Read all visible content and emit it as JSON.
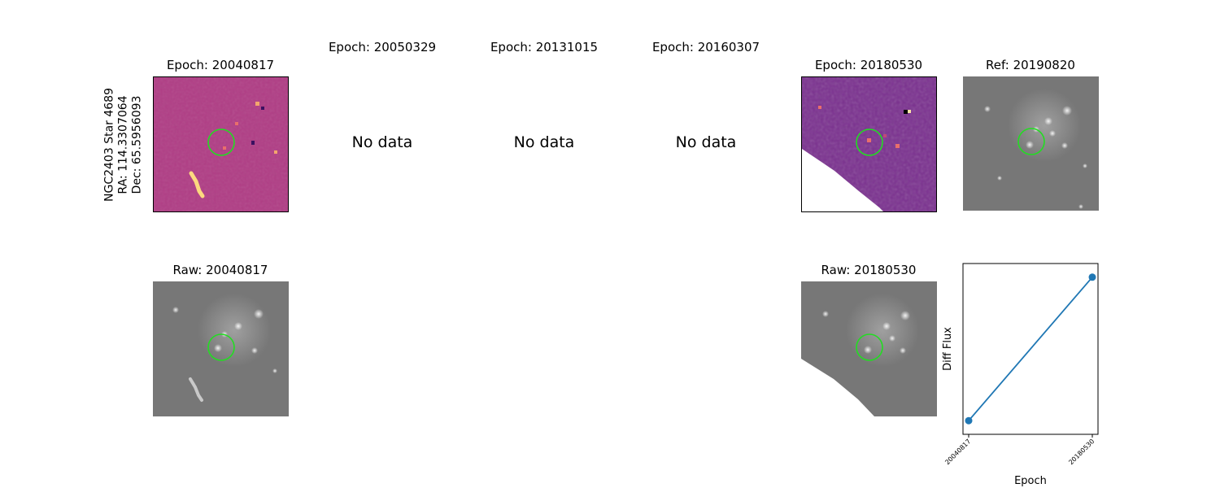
{
  "object_label": {
    "name": "NGC2403 Star 4689",
    "ra": "RA: 114.3307064",
    "dec": "Dec: 65.5956093"
  },
  "top_row": [
    {
      "title": "Epoch: 20040817",
      "kind": "diff",
      "has_data": true
    },
    {
      "title": "Epoch: 20050329",
      "kind": "diff",
      "has_data": false,
      "message": "No data"
    },
    {
      "title": "Epoch: 20131015",
      "kind": "diff",
      "has_data": false,
      "message": "No data"
    },
    {
      "title": "Epoch: 20160307",
      "kind": "diff",
      "has_data": false,
      "message": "No data"
    },
    {
      "title": "Epoch: 20180530",
      "kind": "diff",
      "has_data": true
    },
    {
      "title": "Ref: 20190820",
      "kind": "reference",
      "has_data": true
    }
  ],
  "bottom_row": [
    {
      "title": "Raw: 20040817",
      "kind": "raw"
    },
    {
      "title": "Raw: 20180530",
      "kind": "raw"
    }
  ],
  "colors": {
    "marker_circle": "#22dd22",
    "diff_background": "#b03d85",
    "diff_background_dark": "#7a2f8f",
    "raw_background": "#777777",
    "series_line": "#1f77b4"
  },
  "chart_data": {
    "type": "line",
    "xlabel": "Epoch",
    "ylabel": "Diff Flux",
    "x": [
      "20040817",
      "20180530"
    ],
    "series": [
      {
        "values": [
          0.08,
          0.92
        ]
      }
    ],
    "ylim": [
      0,
      1
    ],
    "grid": false,
    "y_ticks_shown": false
  }
}
